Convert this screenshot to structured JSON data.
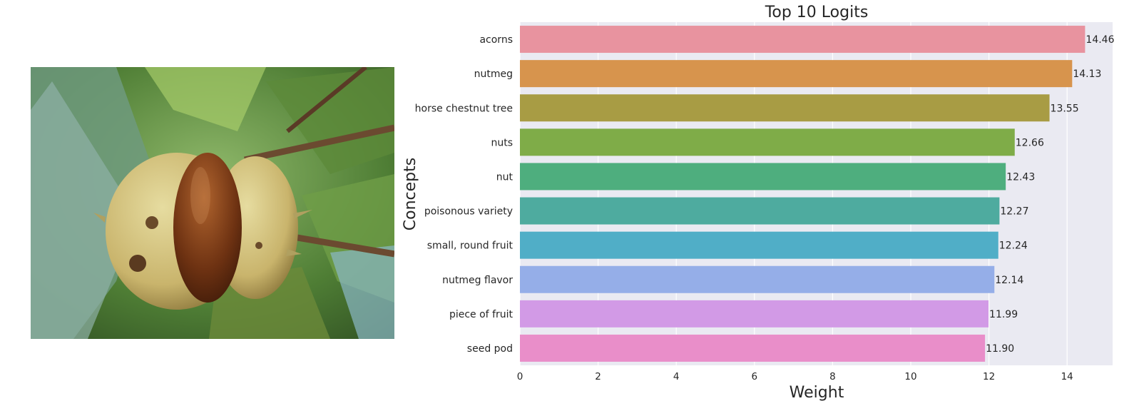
{
  "image": {
    "subject": "horse chestnut in spiky husk"
  },
  "chart_data": {
    "type": "bar",
    "orientation": "horizontal",
    "title": "Top 10 Logits",
    "xlabel": "Weight",
    "ylabel": "Concepts",
    "xlim": [
      0,
      15.2
    ],
    "xticks": [
      0,
      2,
      4,
      6,
      8,
      10,
      12,
      14
    ],
    "grid": true,
    "categories": [
      "acorns",
      "nutmeg",
      "horse chestnut tree",
      "nuts",
      "nut",
      "poisonous variety",
      "small, round fruit",
      "nutmeg flavor",
      "piece of fruit",
      "seed pod"
    ],
    "values": [
      14.46,
      14.13,
      13.55,
      12.66,
      12.43,
      12.27,
      12.24,
      12.14,
      11.99,
      11.9
    ],
    "value_labels": [
      "14.46",
      "14.13",
      "13.55",
      "12.66",
      "12.43",
      "12.27",
      "12.24",
      "12.14",
      "11.99",
      "11.90"
    ],
    "colors": [
      "#e8939f",
      "#d7944d",
      "#a89c44",
      "#7fac48",
      "#4eae7e",
      "#4eab9f",
      "#50aec7",
      "#95aee8",
      "#d29ae6",
      "#e98ec9"
    ],
    "background": "#eaeaf2"
  }
}
